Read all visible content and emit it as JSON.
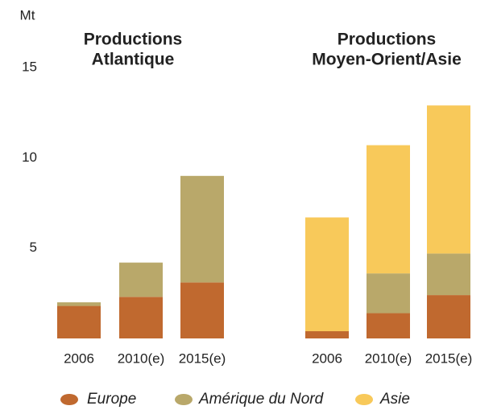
{
  "chart_data": [
    {
      "type": "stacked-bar",
      "title": [
        "Productions",
        "Atlantique"
      ],
      "y_label": "Mt",
      "categories": [
        "2006",
        "2010(e)",
        "2015(e)"
      ],
      "series": [
        {
          "name": "Europe",
          "color": "#c0692f",
          "values": [
            1.8,
            2.3,
            3.1
          ]
        },
        {
          "name": "Amérique du Nord",
          "color": "#b9a86a",
          "values": [
            0.2,
            1.9,
            5.9
          ]
        }
      ],
      "ylim": [
        0,
        15
      ],
      "yticks": [
        5,
        10,
        15
      ]
    },
    {
      "type": "stacked-bar",
      "title": [
        "Productions",
        "Moyen-Orient/Asie"
      ],
      "categories": [
        "2006",
        "2010(e)",
        "2015(e)"
      ],
      "series": [
        {
          "name": "Europe",
          "color": "#c0692f",
          "values": [
            0.4,
            1.4,
            2.4
          ]
        },
        {
          "name": "Amérique du Nord",
          "color": "#b9a86a",
          "values": [
            0,
            2.2,
            2.3
          ]
        },
        {
          "name": "Asie",
          "color": "#f8c95a",
          "values": [
            6.3,
            7.1,
            8.2
          ]
        }
      ],
      "ylim": [
        0,
        15
      ]
    }
  ]
}
